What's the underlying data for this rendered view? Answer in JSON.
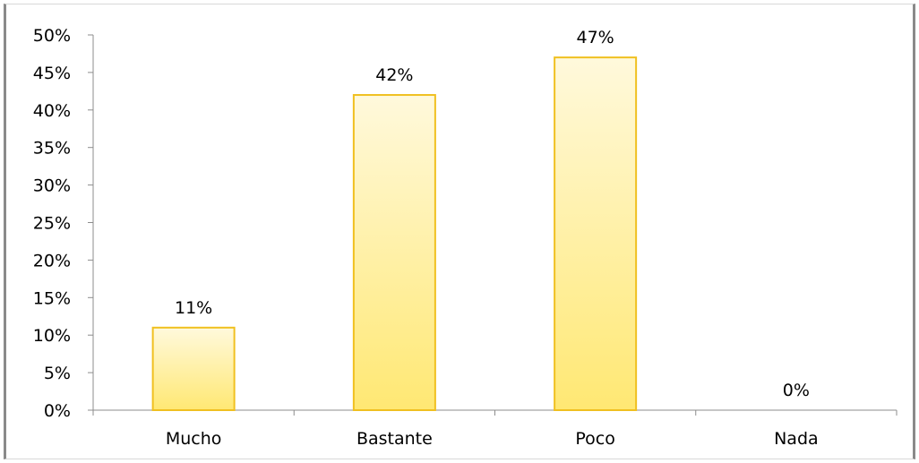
{
  "chart_data": {
    "type": "bar",
    "title": "",
    "xlabel": "",
    "ylabel": "",
    "categories": [
      "Mucho",
      "Bastante",
      "Poco",
      "Nada"
    ],
    "values": [
      11,
      42,
      47,
      0
    ],
    "value_labels": [
      "11%",
      "42%",
      "47%",
      "0%"
    ],
    "ylim": [
      0,
      50
    ],
    "yticks": [
      0,
      5,
      10,
      15,
      20,
      25,
      30,
      35,
      40,
      45,
      50
    ],
    "ytick_labels": [
      "0%",
      "5%",
      "10%",
      "15%",
      "20%",
      "25%",
      "30%",
      "35%",
      "40%",
      "45%",
      "50%"
    ],
    "grid": false,
    "legend": false,
    "colors": {
      "bar_fill_top": "#fff9dc",
      "bar_fill_bottom": "#ffe873",
      "bar_stroke": "#f0c020",
      "axis": "#8c8c8c"
    }
  }
}
